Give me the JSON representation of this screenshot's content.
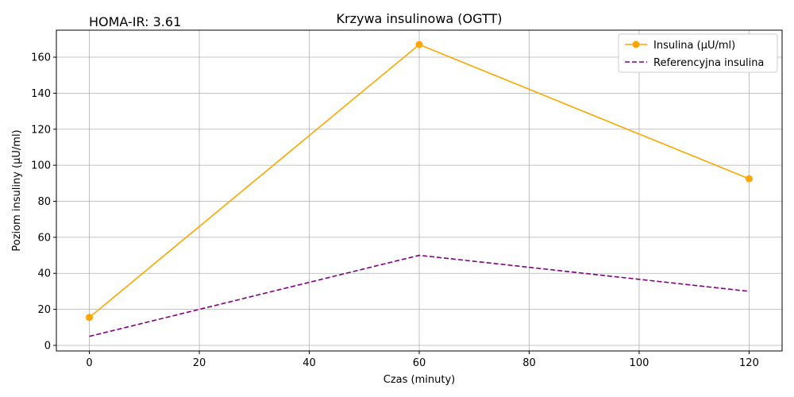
{
  "chart_data": {
    "type": "line",
    "title": "Krzywa insulinowa (OGTT)",
    "annotation": "HOMA-IR: 3.61",
    "xlabel": "Czas (minuty)",
    "ylabel": "Poziom insuliny (µU/ml)",
    "xlim": [
      -6,
      126
    ],
    "ylim": [
      -3.1,
      175
    ],
    "x_ticks": [
      0,
      20,
      40,
      60,
      80,
      100,
      120
    ],
    "y_ticks": [
      0,
      20,
      40,
      60,
      80,
      100,
      120,
      140,
      160
    ],
    "grid": true,
    "legend_position": "top-right",
    "series": [
      {
        "name": "Insulina (µU/ml)",
        "x": [
          0,
          60,
          120
        ],
        "values": [
          15.5,
          167,
          92.5
        ],
        "color": "#ffa500",
        "style": "solid",
        "markers": true
      },
      {
        "name": "Referencyjna insulina",
        "x": [
          0,
          60,
          120
        ],
        "values": [
          5,
          50,
          30
        ],
        "color": "#800080",
        "style": "dashed",
        "markers": false
      }
    ]
  }
}
